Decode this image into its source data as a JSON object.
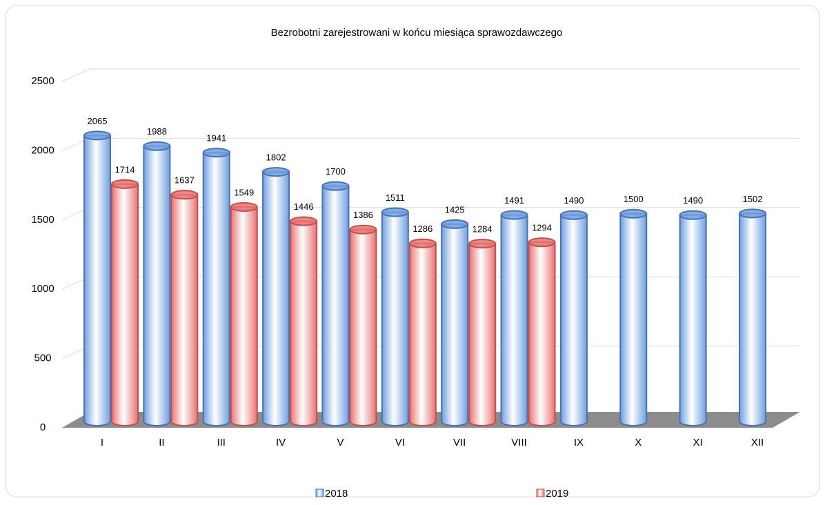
{
  "chart_data": {
    "type": "bar3d",
    "title": "Bezrobotni zarejestrowani w końcu miesiąca sprawozdawczego",
    "categories": [
      "I",
      "II",
      "III",
      "IV",
      "V",
      "VI",
      "VII",
      "VIII",
      "IX",
      "X",
      "XI",
      "XII"
    ],
    "series": [
      {
        "name": "2018",
        "color": "#6f9fe0",
        "values": [
          2065,
          1988,
          1941,
          1802,
          1700,
          1511,
          1425,
          1491,
          1490,
          1500,
          1490,
          1502
        ]
      },
      {
        "name": "2019",
        "color": "#e87272",
        "values": [
          1714,
          1637,
          1549,
          1446,
          1386,
          1286,
          1284,
          1294,
          null,
          null,
          null,
          null
        ]
      }
    ],
    "ylim": [
      0,
      2500
    ],
    "yticks": [
      0,
      500,
      1000,
      1500,
      2000,
      2500
    ],
    "grid": true,
    "legend": "bottom"
  }
}
